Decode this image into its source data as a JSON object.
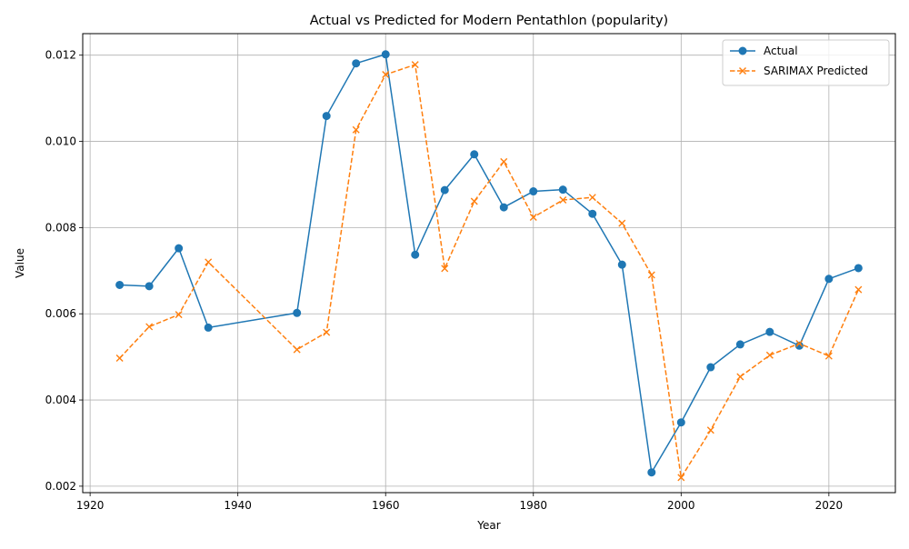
{
  "chart_data": {
    "type": "line",
    "title": "Actual vs Predicted for Modern Pentathlon (popularity)",
    "xlabel": "Year",
    "ylabel": "Value",
    "xlim": [
      1919,
      2029
    ],
    "ylim": [
      0.00185,
      0.0125
    ],
    "x_ticks": [
      1920,
      1940,
      1960,
      1980,
      2000,
      2020
    ],
    "x_tick_labels": [
      "1920",
      "1940",
      "1960",
      "1980",
      "2000",
      "2020"
    ],
    "y_ticks": [
      0.002,
      0.004,
      0.006,
      0.008,
      0.01,
      0.012
    ],
    "y_tick_labels": [
      "0.002",
      "0.004",
      "0.006",
      "0.008",
      "0.010",
      "0.012"
    ],
    "grid": true,
    "legend_position": "top-right",
    "x": [
      1924,
      1928,
      1932,
      1936,
      1948,
      1952,
      1956,
      1960,
      1964,
      1968,
      1972,
      1976,
      1980,
      1984,
      1988,
      1992,
      1996,
      2000,
      2004,
      2008,
      2012,
      2016,
      2020,
      2024
    ],
    "series": [
      {
        "name": "Actual",
        "color": "#1f77b4",
        "marker": "circle",
        "line_style": "solid",
        "values": [
          0.00667,
          0.00664,
          0.00752,
          0.00568,
          0.00602,
          0.01059,
          0.01181,
          0.01202,
          0.00737,
          0.00887,
          0.0097,
          0.00847,
          0.00884,
          0.00888,
          0.00832,
          0.00714,
          0.00232,
          0.00348,
          0.00476,
          0.00529,
          0.00558,
          0.00526,
          0.00681,
          0.00706
        ]
      },
      {
        "name": "SARIMAX Predicted",
        "color": "#ff7f0e",
        "marker": "x",
        "line_style": "dashed",
        "values": [
          0.00497,
          0.0057,
          0.00598,
          0.0072,
          0.00517,
          0.00557,
          0.01027,
          0.01155,
          0.01178,
          0.00705,
          0.00861,
          0.00953,
          0.00824,
          0.00864,
          0.0087,
          0.0081,
          0.0069,
          0.0022,
          0.0033,
          0.00454,
          0.00504,
          0.00531,
          0.00502,
          0.00656
        ]
      }
    ]
  }
}
